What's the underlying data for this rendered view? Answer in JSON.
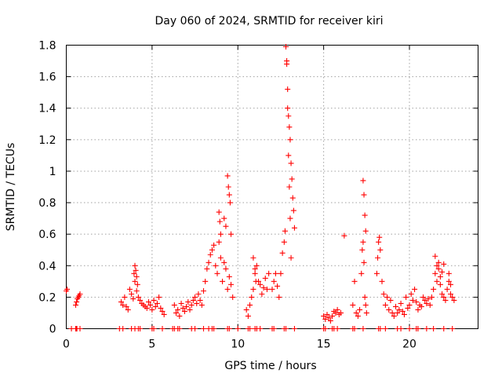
{
  "chart_data": {
    "type": "scatter",
    "title": "Day 060 of 2024, SRMTID for receiver kiri",
    "xlabel": "GPS time / hours",
    "ylabel": "SRMTID / TECUs",
    "xlim": [
      0,
      24
    ],
    "ylim": [
      0,
      1.8
    ],
    "xticks": [
      0,
      5,
      10,
      15,
      20
    ],
    "xtick_labels": [
      "0",
      "5",
      "10",
      "15",
      "20"
    ],
    "yticks": [
      0,
      0.2,
      0.4,
      0.6,
      0.8,
      1.0,
      1.2,
      1.4,
      1.6,
      1.8
    ],
    "ytick_labels": [
      "0",
      "0.2",
      "0.4",
      "0.6",
      "0.8",
      "1",
      "1.2",
      "1.4",
      "1.6",
      "1.8"
    ],
    "grid": true,
    "marker": "+",
    "series": [
      {
        "name": "SRMTID",
        "color": "#ff0000",
        "x": [
          0.0,
          0.05,
          0.3,
          0.6,
          0.65,
          0.7,
          0.75,
          0.8,
          0.55,
          0.6,
          3.2,
          3.3,
          3.4,
          3.5,
          3.6,
          3.7,
          3.8,
          3.9,
          4.0,
          4.1,
          4.2,
          4.3,
          4.4,
          4.5,
          4.6,
          4.7,
          4.8,
          4.9,
          5.0,
          5.1,
          5.2,
          5.3,
          5.4,
          5.5,
          5.6,
          5.7,
          4.0,
          4.05,
          4.1,
          4.15,
          3.95,
          6.3,
          6.4,
          6.5,
          6.6,
          6.7,
          6.8,
          6.9,
          7.0,
          7.1,
          7.2,
          7.3,
          7.4,
          7.5,
          7.6,
          7.7,
          7.8,
          7.9,
          8.0,
          8.1,
          8.2,
          8.3,
          8.4,
          8.5,
          8.6,
          8.7,
          8.8,
          8.9,
          9.0,
          9.1,
          9.2,
          9.3,
          9.4,
          9.5,
          9.6,
          9.7,
          8.9,
          8.95,
          9.0,
          9.2,
          9.3,
          9.4,
          9.45,
          9.5,
          9.55,
          9.6,
          10.5,
          10.6,
          10.7,
          10.8,
          10.9,
          11.0,
          11.1,
          11.2,
          11.3,
          11.4,
          11.5,
          11.6,
          11.7,
          11.8,
          10.9,
          11.0,
          11.05,
          12.0,
          12.1,
          12.2,
          12.3,
          12.4,
          12.5,
          12.6,
          12.7,
          12.75,
          12.8,
          12.85,
          12.9,
          12.95,
          13.0,
          13.05,
          13.1,
          13.15,
          13.2,
          13.25,
          13.3,
          12.85,
          12.9,
          12.95,
          13.0,
          13.05,
          13.1,
          15.0,
          15.1,
          15.2,
          15.3,
          15.4,
          15.5,
          15.6,
          15.7,
          15.8,
          15.9,
          16.0,
          16.2,
          16.7,
          16.8,
          16.9,
          17.0,
          17.1,
          17.2,
          17.25,
          17.3,
          17.35,
          17.4,
          17.45,
          17.5,
          17.3,
          17.35,
          17.4,
          17.45,
          18.1,
          18.15,
          18.2,
          18.25,
          18.3,
          18.4,
          18.5,
          18.6,
          18.7,
          18.8,
          18.9,
          19.0,
          19.1,
          19.2,
          19.3,
          19.4,
          19.5,
          19.6,
          19.7,
          19.8,
          19.9,
          20.0,
          20.1,
          20.2,
          20.3,
          20.4,
          20.5,
          20.6,
          20.7,
          20.8,
          20.9,
          21.0,
          21.1,
          21.2,
          21.3,
          21.4,
          21.5,
          21.6,
          21.7,
          21.8,
          21.9,
          22.0,
          22.1,
          22.2,
          22.3,
          22.4,
          22.5,
          22.6,
          21.5,
          21.6,
          21.7,
          21.8,
          21.9,
          22.0,
          22.3,
          22.4
        ],
        "y": [
          0.24,
          0.25,
          0.0,
          0.17,
          0.19,
          0.2,
          0.21,
          0.22,
          0.15,
          0.0,
          0.17,
          0.15,
          0.2,
          0.14,
          0.12,
          0.25,
          0.22,
          0.19,
          0.3,
          0.24,
          0.2,
          0.18,
          0.16,
          0.15,
          0.14,
          0.13,
          0.17,
          0.15,
          0.12,
          0.18,
          0.14,
          0.16,
          0.2,
          0.13,
          0.11,
          0.09,
          0.4,
          0.37,
          0.33,
          0.28,
          0.35,
          0.15,
          0.1,
          0.12,
          0.08,
          0.16,
          0.13,
          0.11,
          0.14,
          0.17,
          0.12,
          0.15,
          0.18,
          0.2,
          0.16,
          0.22,
          0.18,
          0.15,
          0.24,
          0.3,
          0.38,
          0.42,
          0.47,
          0.5,
          0.53,
          0.4,
          0.35,
          0.55,
          0.45,
          0.3,
          0.42,
          0.38,
          0.25,
          0.33,
          0.28,
          0.2,
          0.74,
          0.68,
          0.6,
          0.7,
          0.65,
          0.97,
          0.9,
          0.85,
          0.8,
          0.6,
          0.12,
          0.08,
          0.15,
          0.2,
          0.25,
          0.35,
          0.4,
          0.3,
          0.28,
          0.22,
          0.26,
          0.32,
          0.25,
          0.35,
          0.45,
          0.38,
          0.3,
          0.25,
          0.3,
          0.35,
          0.27,
          0.2,
          0.35,
          0.48,
          0.55,
          0.62,
          1.79,
          1.7,
          1.52,
          1.35,
          1.28,
          1.2,
          1.05,
          0.95,
          0.83,
          0.75,
          0.64,
          1.68,
          1.4,
          1.1,
          0.9,
          0.7,
          0.45,
          0.08,
          0.06,
          0.09,
          0.07,
          0.05,
          0.08,
          0.11,
          0.1,
          0.12,
          0.09,
          0.1,
          0.59,
          0.15,
          0.3,
          0.1,
          0.08,
          0.12,
          0.35,
          0.5,
          0.55,
          0.42,
          0.2,
          0.15,
          0.1,
          0.94,
          0.85,
          0.72,
          0.62,
          0.35,
          0.45,
          0.55,
          0.58,
          0.5,
          0.3,
          0.22,
          0.15,
          0.2,
          0.12,
          0.18,
          0.1,
          0.08,
          0.14,
          0.1,
          0.12,
          0.16,
          0.11,
          0.09,
          0.2,
          0.13,
          0.15,
          0.22,
          0.18,
          0.25,
          0.17,
          0.12,
          0.15,
          0.14,
          0.2,
          0.18,
          0.16,
          0.19,
          0.15,
          0.2,
          0.25,
          0.35,
          0.3,
          0.42,
          0.28,
          0.22,
          0.2,
          0.18,
          0.25,
          0.3,
          0.22,
          0.2,
          0.18,
          0.46,
          0.4,
          0.38,
          0.33,
          0.36,
          0.41,
          0.35,
          0.28
        ],
        "zero_x": [
          0.55,
          0.62,
          0.8,
          3.1,
          3.3,
          3.8,
          4.0,
          4.2,
          4.3,
          5.0,
          5.1,
          5.6,
          6.2,
          6.3,
          6.5,
          6.6,
          7.3,
          7.5,
          8.0,
          8.3,
          8.5,
          8.6,
          9.4,
          9.5,
          10.0,
          10.6,
          10.7,
          11.0,
          11.1,
          11.3,
          12.0,
          12.1,
          12.7,
          12.8,
          13.3,
          15.0,
          15.1,
          15.5,
          15.6,
          15.8,
          16.7,
          16.8,
          17.3,
          18.2,
          18.3,
          18.6,
          19.3,
          19.5,
          20.0,
          20.4,
          20.5,
          21.0,
          21.4,
          22.0,
          22.5
        ]
      }
    ]
  }
}
